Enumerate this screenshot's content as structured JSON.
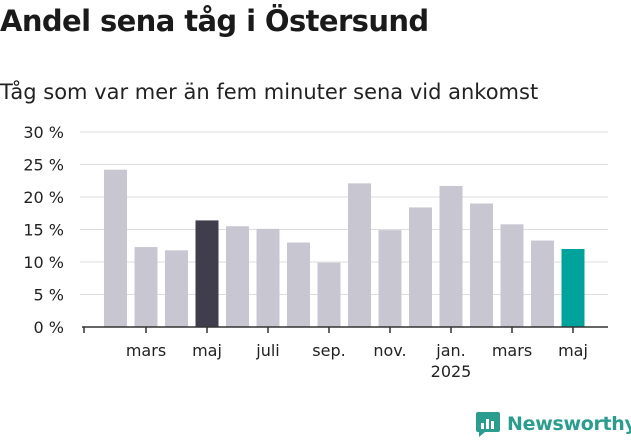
{
  "title": "Andel sena tåg i Östersund",
  "subtitle": "Tåg som var mer än fem minuter sena vid ankomst",
  "brand": {
    "name": "Newsworthy",
    "icon": "newsworthy-logo-icon",
    "color": "#2a9d8f"
  },
  "colors": {
    "default_bar": "#c8c7d1",
    "highlight_dark": "#403e4c",
    "highlight_latest": "#00a39b",
    "grid": "#dddddd",
    "axis": "#333333",
    "text": "#222222"
  },
  "chart_data": {
    "type": "bar",
    "title": "Andel sena tåg i Östersund",
    "subtitle": "Tåg som var mer än fem minuter sena vid ankomst",
    "xlabel": "",
    "ylabel": "",
    "ylim": [
      0,
      30
    ],
    "y_ticks": [
      0,
      5,
      10,
      15,
      20,
      25,
      30
    ],
    "y_tick_labels": [
      "0 %",
      "5 %",
      "10 %",
      "15 %",
      "20 %",
      "25 %",
      "30 %"
    ],
    "grid": true,
    "categories": [
      "2024-02",
      "2024-03",
      "2024-04",
      "2024-05",
      "2024-06",
      "2024-07",
      "2024-08",
      "2024-09",
      "2024-10",
      "2024-11",
      "2024-12",
      "2025-01",
      "2025-02",
      "2025-03",
      "2025-04",
      "2025-05"
    ],
    "values": [
      24.2,
      12.3,
      11.8,
      16.4,
      15.5,
      15.1,
      13.0,
      9.9,
      22.1,
      14.9,
      18.4,
      21.7,
      19.0,
      15.8,
      13.3,
      12.0
    ],
    "bar_colors": [
      "default",
      "default",
      "default",
      "dark",
      "default",
      "default",
      "default",
      "default",
      "default",
      "default",
      "default",
      "default",
      "default",
      "default",
      "default",
      "latest"
    ],
    "x_tick_labels": [
      {
        "category": "2024-03",
        "label": "mars"
      },
      {
        "category": "2024-05",
        "label": "maj"
      },
      {
        "category": "2024-07",
        "label": "juli"
      },
      {
        "category": "2024-09",
        "label": "sep."
      },
      {
        "category": "2024-11",
        "label": "nov."
      },
      {
        "category": "2025-01",
        "label": "jan.",
        "sublabel": "2025"
      },
      {
        "category": "2025-03",
        "label": "mars"
      },
      {
        "category": "2025-05",
        "label": "maj"
      }
    ]
  }
}
